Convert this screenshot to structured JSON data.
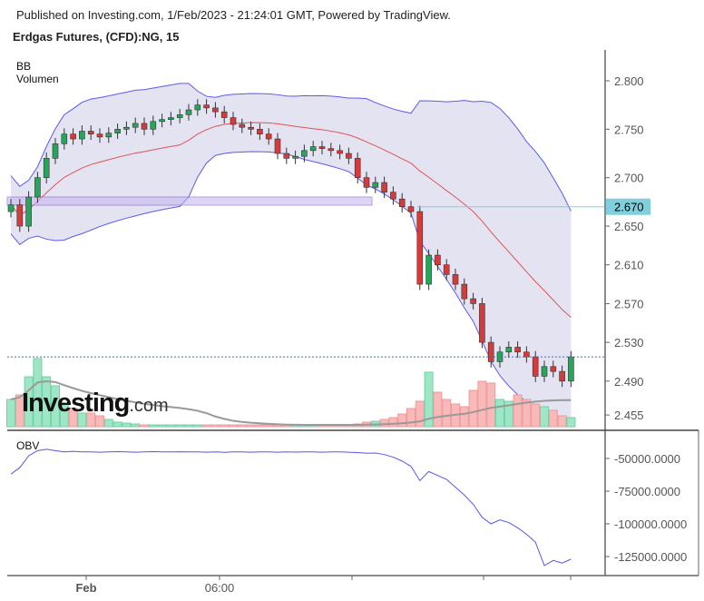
{
  "header": {
    "published": "Published on Investing.com, 1/Feb/2023 - 21:24:01 GMT, Powered by TradingView.",
    "title": "Erdgas Futures, (CFD):NG, 15"
  },
  "legend": {
    "bb": "BB",
    "volume": "Volumen",
    "obv": "OBV"
  },
  "logo": {
    "text": "Investing",
    "suffix": ".com"
  },
  "chart_data": [
    {
      "type": "candlestick",
      "pane": "price",
      "y_ticks": [
        "2.800",
        "2.750",
        "2.700",
        "2.650",
        "2.610",
        "2.570",
        "2.530",
        "2.490",
        "2.455"
      ],
      "ylim": [
        2.44,
        2.83
      ],
      "x_ticks": [
        "Feb",
        "06:00",
        "",
        "",
        ""
      ],
      "close": [
        2.672,
        2.65,
        2.68,
        2.7,
        2.72,
        2.735,
        2.745,
        2.74,
        2.748,
        2.745,
        2.742,
        2.746,
        2.75,
        2.752,
        2.756,
        2.75,
        2.758,
        2.76,
        2.762,
        2.765,
        2.77,
        2.775,
        2.772,
        2.768,
        2.762,
        2.755,
        2.752,
        2.75,
        2.745,
        2.74,
        2.725,
        2.72,
        2.722,
        2.728,
        2.732,
        2.73,
        2.728,
        2.725,
        2.72,
        2.7,
        2.69,
        2.695,
        2.685,
        2.678,
        2.67,
        2.665,
        2.59,
        2.62,
        2.61,
        2.6,
        2.59,
        2.575,
        2.57,
        2.53,
        2.51,
        2.52,
        2.525,
        2.52,
        2.515,
        2.495,
        2.505,
        2.5,
        2.49,
        2.515
      ],
      "horizontal_line": {
        "value": 2.67,
        "label": "2.670",
        "color": "#7fcfdd"
      },
      "current_price_line": 2.515,
      "colors": {
        "up": "#26a65b",
        "down": "#d63b3b",
        "bb_band": "#5b5bf0",
        "bb_fill": "#e3e3f2",
        "bb_basis": "#e05555"
      }
    },
    {
      "type": "bar",
      "pane": "volume",
      "values": [
        30,
        35,
        55,
        75,
        55,
        45,
        25,
        20,
        15,
        15,
        12,
        8,
        5,
        4,
        3,
        2,
        2,
        2,
        2,
        2,
        2,
        2,
        2,
        2,
        2,
        2,
        2,
        2,
        2,
        2,
        2,
        2,
        2,
        2,
        2,
        2,
        2,
        2,
        2,
        3,
        5,
        6,
        8,
        10,
        14,
        20,
        28,
        60,
        38,
        30,
        25,
        22,
        40,
        50,
        48,
        30,
        28,
        35,
        30,
        25,
        22,
        18,
        12,
        10
      ],
      "ma_color": "#999999"
    },
    {
      "type": "line",
      "pane": "obv",
      "name": "OBV",
      "y_ticks": [
        "-50000.0000",
        "-75000.0000",
        "-100000.0000",
        "-125000.0000"
      ],
      "values": [
        -62000,
        -57000,
        -48000,
        -44000,
        -43000,
        -44000,
        -45000,
        -44500,
        -45000,
        -45000,
        -45200,
        -45000,
        -44800,
        -45000,
        -45200,
        -45000,
        -44800,
        -45000,
        -45000,
        -44900,
        -45000,
        -45000,
        -45200,
        -45000,
        -45300,
        -45000,
        -45000,
        -45200,
        -45000,
        -45000,
        -45200,
        -45000,
        -45100,
        -45000,
        -45000,
        -45200,
        -45000,
        -45000,
        -45200,
        -45500,
        -46000,
        -45800,
        -47000,
        -49000,
        -52000,
        -56000,
        -67000,
        -60000,
        -63000,
        -66000,
        -72000,
        -78000,
        -85000,
        -95000,
        -100000,
        -97000,
        -99000,
        -103000,
        -108000,
        -114000,
        -132000,
        -128000,
        -130000,
        -127000
      ]
    }
  ]
}
